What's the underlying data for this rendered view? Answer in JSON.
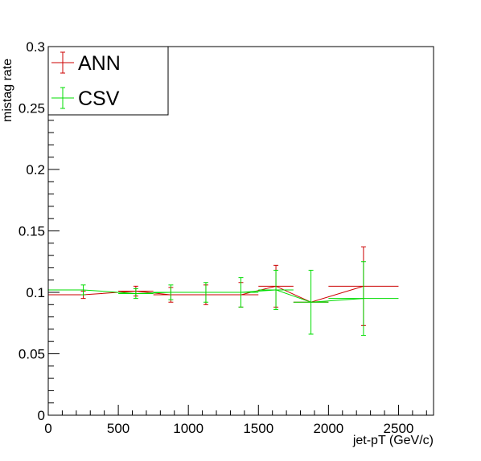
{
  "chart_data": {
    "type": "line",
    "xlabel": "jet-pT (GeV/c)",
    "ylabel": "mistag rate",
    "xlim": [
      0,
      2750
    ],
    "ylim": [
      0,
      0.3
    ],
    "x_ticks": [
      0,
      500,
      1000,
      1500,
      2000,
      2500
    ],
    "y_ticks": [
      0,
      0.05,
      0.1,
      0.15,
      0.2,
      0.25,
      0.3
    ],
    "x_tick_labels": [
      "0",
      "500",
      "1000",
      "1500",
      "2000",
      "2500"
    ],
    "y_tick_labels": [
      "0",
      "0.05",
      "0.1",
      "0.15",
      "0.2",
      "0.25",
      "0.3"
    ],
    "grid": false,
    "legend_position": "top-left",
    "series": [
      {
        "name": "ANN",
        "color": "#cc0000",
        "points": [
          {
            "x": 0,
            "xerr": 0,
            "y": 0.098,
            "yerr": 0
          },
          {
            "x": 250,
            "xerr": 0,
            "y": 0.098,
            "yerr": 0.003
          },
          {
            "x": 625,
            "xerr": 125,
            "y": 0.101,
            "yerr": 0.004
          },
          {
            "x": 875,
            "xerr": 125,
            "y": 0.098,
            "yerr": 0.006
          },
          {
            "x": 1125,
            "xerr": 125,
            "y": 0.098,
            "yerr": 0.008
          },
          {
            "x": 1375,
            "xerr": 125,
            "y": 0.098,
            "yerr": 0.01
          },
          {
            "x": 1625,
            "xerr": 125,
            "y": 0.105,
            "yerr": 0.017
          },
          {
            "x": 1875,
            "xerr": 125,
            "y": 0.092,
            "yerr": 0
          },
          {
            "x": 2250,
            "xerr": 250,
            "y": 0.105,
            "yerr": 0.032
          }
        ]
      },
      {
        "name": "CSV",
        "color": "#00dd00",
        "points": [
          {
            "x": 0,
            "xerr": 0,
            "y": 0.102,
            "yerr": 0
          },
          {
            "x": 250,
            "xerr": 0,
            "y": 0.102,
            "yerr": 0.004
          },
          {
            "x": 625,
            "xerr": 125,
            "y": 0.099,
            "yerr": 0.004
          },
          {
            "x": 875,
            "xerr": 125,
            "y": 0.1,
            "yerr": 0.006
          },
          {
            "x": 1125,
            "xerr": 125,
            "y": 0.1,
            "yerr": 0.008
          },
          {
            "x": 1375,
            "xerr": 125,
            "y": 0.1,
            "yerr": 0.012
          },
          {
            "x": 1625,
            "xerr": 125,
            "y": 0.102,
            "yerr": 0.016
          },
          {
            "x": 1875,
            "xerr": 125,
            "y": 0.092,
            "yerr": 0.026
          },
          {
            "x": 2250,
            "xerr": 250,
            "y": 0.095,
            "yerr": 0.03
          }
        ]
      }
    ]
  }
}
